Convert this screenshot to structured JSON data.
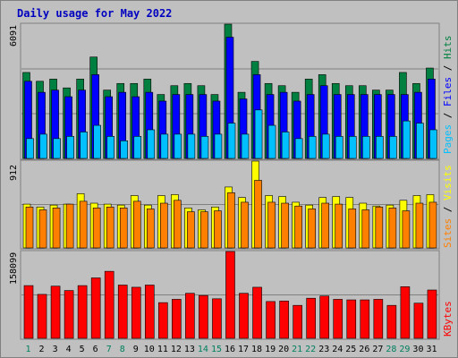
{
  "chart_data": [
    {
      "type": "bar",
      "title": "Daily usage for May 2022",
      "panel": "hits-files-pages",
      "ylabel_parts": [
        {
          "text": "Pages",
          "color": "#00c0ff"
        },
        {
          "text": " / ",
          "color": "#000000"
        },
        {
          "text": "Files",
          "color": "#0000ff"
        },
        {
          "text": " / ",
          "color": "#000000"
        },
        {
          "text": "Hits",
          "color": "#008040"
        }
      ],
      "ymax_label": "6091",
      "ylim": [
        0,
        6091
      ],
      "categories": [
        "1",
        "2",
        "3",
        "4",
        "5",
        "6",
        "7",
        "8",
        "9",
        "10",
        "11",
        "12",
        "13",
        "14",
        "15",
        "16",
        "17",
        "18",
        "19",
        "20",
        "21",
        "22",
        "23",
        "24",
        "25",
        "26",
        "27",
        "28",
        "29",
        "30",
        "31"
      ],
      "weekend_days": [
        "1",
        "7",
        "8",
        "14",
        "15",
        "21",
        "22",
        "28",
        "29"
      ],
      "series": [
        {
          "name": "Hits",
          "color": "#008040",
          "values": [
            3900,
            3500,
            3600,
            3200,
            3600,
            4600,
            3100,
            3400,
            3400,
            3600,
            2900,
            3300,
            3400,
            3300,
            2900,
            6091,
            3000,
            4400,
            3400,
            3300,
            3000,
            3600,
            3800,
            3400,
            3300,
            3300,
            3100,
            3100,
            3900,
            3400,
            4100
          ]
        },
        {
          "name": "Files",
          "color": "#0000ff",
          "values": [
            3500,
            3000,
            3100,
            2800,
            3100,
            3800,
            2800,
            3000,
            2800,
            3000,
            2600,
            2900,
            2900,
            2900,
            2600,
            5500,
            2700,
            3800,
            2900,
            3000,
            2600,
            2900,
            3300,
            2900,
            2900,
            2900,
            2900,
            2900,
            2900,
            3000,
            3600
          ]
        },
        {
          "name": "Pages",
          "color": "#00c0ff",
          "values": [
            900,
            1100,
            900,
            1000,
            1200,
            1500,
            1000,
            800,
            1000,
            1300,
            1100,
            1100,
            1100,
            1000,
            1100,
            1600,
            1100,
            2200,
            1500,
            1200,
            900,
            1000,
            1100,
            1000,
            1000,
            1000,
            1000,
            1000,
            1700,
            1600,
            1300
          ]
        }
      ]
    },
    {
      "type": "bar",
      "panel": "visits-sites",
      "ylabel_parts": [
        {
          "text": "Sites",
          "color": "#ff8000"
        },
        {
          "text": " / ",
          "color": "#000000"
        },
        {
          "text": "Visits",
          "color": "#ffff00"
        }
      ],
      "ymax_label": "912",
      "ylim": [
        0,
        912
      ],
      "series": [
        {
          "name": "Visits",
          "color": "#ffff00",
          "values": [
            460,
            430,
            450,
            460,
            570,
            470,
            460,
            450,
            550,
            450,
            550,
            560,
            420,
            400,
            430,
            640,
            530,
            912,
            550,
            540,
            480,
            450,
            530,
            540,
            530,
            470,
            440,
            450,
            500,
            550,
            560
          ]
        },
        {
          "name": "Sites",
          "color": "#ff8000",
          "values": [
            430,
            400,
            420,
            460,
            490,
            420,
            430,
            420,
            490,
            410,
            470,
            500,
            380,
            380,
            390,
            580,
            480,
            710,
            480,
            470,
            440,
            410,
            470,
            460,
            410,
            400,
            430,
            420,
            390,
            470,
            480
          ]
        }
      ]
    },
    {
      "type": "bar",
      "panel": "kbytes",
      "ylabel_parts": [
        {
          "text": "KBytes",
          "color": "#ff0000"
        }
      ],
      "ymax_label": "158099",
      "ylim": [
        0,
        158099
      ],
      "series": [
        {
          "name": "KBytes",
          "color": "#ff0000",
          "values": [
            96000,
            80000,
            95000,
            87000,
            96000,
            110000,
            122000,
            97000,
            93000,
            97000,
            65000,
            71000,
            82000,
            78000,
            72000,
            158099,
            82000,
            93000,
            67000,
            68000,
            60000,
            73000,
            77000,
            71000,
            70000,
            70000,
            71000,
            60000,
            94000,
            64000,
            88000
          ]
        }
      ]
    }
  ]
}
